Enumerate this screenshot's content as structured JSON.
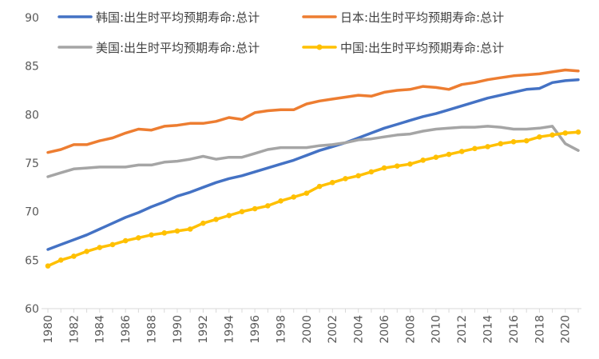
{
  "chart_data": {
    "type": "line",
    "title": "",
    "xlabel": "",
    "ylabel": "",
    "ylim": [
      60,
      90
    ],
    "yticks": [
      60,
      65,
      70,
      75,
      80,
      85,
      90
    ],
    "xticks": [
      1980,
      1982,
      1984,
      1986,
      1988,
      1990,
      1992,
      1994,
      1996,
      1998,
      2000,
      2002,
      2004,
      2006,
      2008,
      2010,
      2012,
      2014,
      2016,
      2018,
      2020
    ],
    "grid": false,
    "legend_position": "top",
    "x": [
      1980,
      1981,
      1982,
      1983,
      1984,
      1985,
      1986,
      1987,
      1988,
      1989,
      1990,
      1991,
      1992,
      1993,
      1994,
      1995,
      1996,
      1997,
      1998,
      1999,
      2000,
      2001,
      2002,
      2003,
      2004,
      2005,
      2006,
      2007,
      2008,
      2009,
      2010,
      2011,
      2012,
      2013,
      2014,
      2015,
      2016,
      2017,
      2018,
      2019,
      2020,
      2021
    ],
    "series": [
      {
        "name": "韩国:出生时平均预期寿命:总计",
        "color": "#4472C4",
        "marker": "none",
        "values": [
          66.1,
          66.6,
          67.1,
          67.6,
          68.2,
          68.8,
          69.4,
          69.9,
          70.5,
          71.0,
          71.6,
          72.0,
          72.5,
          73.0,
          73.4,
          73.7,
          74.1,
          74.5,
          74.9,
          75.3,
          75.8,
          76.3,
          76.7,
          77.1,
          77.6,
          78.1,
          78.6,
          79.0,
          79.4,
          79.8,
          80.1,
          80.5,
          80.9,
          81.3,
          81.7,
          82.0,
          82.3,
          82.6,
          82.7,
          83.3,
          83.5,
          83.6
        ]
      },
      {
        "name": "日本:出生时平均预期寿命:总计",
        "color": "#ED7D31",
        "marker": "none",
        "values": [
          76.1,
          76.4,
          76.9,
          76.9,
          77.3,
          77.6,
          78.1,
          78.5,
          78.4,
          78.8,
          78.9,
          79.1,
          79.1,
          79.3,
          79.7,
          79.5,
          80.2,
          80.4,
          80.5,
          80.5,
          81.1,
          81.4,
          81.6,
          81.8,
          82.0,
          81.9,
          82.3,
          82.5,
          82.6,
          82.9,
          82.8,
          82.6,
          83.1,
          83.3,
          83.6,
          83.8,
          84.0,
          84.1,
          84.2,
          84.4,
          84.6,
          84.5
        ]
      },
      {
        "name": "美国:出生时平均预期寿命:总计",
        "color": "#A5A5A5",
        "marker": "none",
        "values": [
          73.6,
          74.0,
          74.4,
          74.5,
          74.6,
          74.6,
          74.6,
          74.8,
          74.8,
          75.1,
          75.2,
          75.4,
          75.7,
          75.4,
          75.6,
          75.6,
          76.0,
          76.4,
          76.6,
          76.6,
          76.6,
          76.8,
          76.9,
          77.1,
          77.4,
          77.5,
          77.7,
          77.9,
          78.0,
          78.3,
          78.5,
          78.6,
          78.7,
          78.7,
          78.8,
          78.7,
          78.5,
          78.5,
          78.6,
          78.8,
          77.0,
          76.3
        ]
      },
      {
        "name": "中国:出生时平均预期寿命:总计",
        "color": "#FFC000",
        "marker": "circle",
        "values": [
          64.4,
          65.0,
          65.4,
          65.9,
          66.3,
          66.6,
          67.0,
          67.3,
          67.6,
          67.8,
          68.0,
          68.2,
          68.8,
          69.2,
          69.6,
          70.0,
          70.3,
          70.6,
          71.1,
          71.5,
          71.9,
          72.6,
          73.0,
          73.4,
          73.7,
          74.1,
          74.5,
          74.7,
          74.9,
          75.3,
          75.6,
          75.9,
          76.2,
          76.5,
          76.7,
          77.0,
          77.2,
          77.3,
          77.7,
          77.9,
          78.1,
          78.2
        ]
      }
    ]
  }
}
